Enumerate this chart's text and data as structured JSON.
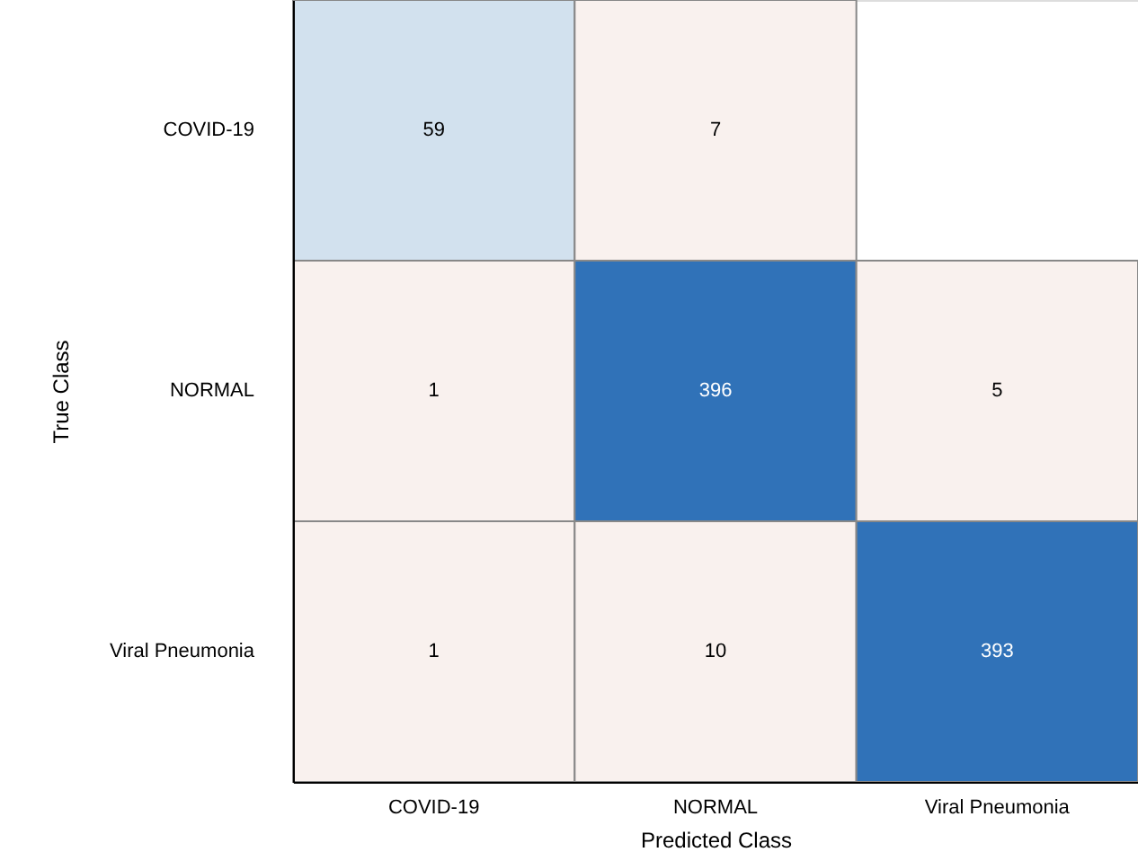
{
  "chart_data": {
    "type": "heatmap",
    "xlabel": "Predicted Class",
    "ylabel": "True Class",
    "categories": [
      "COVID-19",
      "NORMAL",
      "Viral Pneumonia"
    ],
    "y_categories": [
      "COVID-19",
      "NORMAL",
      "Viral Pneumonia"
    ],
    "cells": [
      [
        59,
        7,
        null
      ],
      [
        1,
        396,
        5
      ],
      [
        1,
        10,
        393
      ]
    ],
    "colors": [
      [
        "#d2e1ee",
        "#f9f1ee",
        null
      ],
      [
        "#f9f1ee",
        "#3072b8",
        "#f9f1ee"
      ],
      [
        "#f9f1ee",
        "#f9f1ee",
        "#3072b8"
      ]
    ],
    "data_labels": true,
    "grid": false
  }
}
